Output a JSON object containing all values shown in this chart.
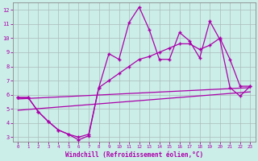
{
  "xlabel": "Windchill (Refroidissement éolien,°C)",
  "bg_color": "#cceee8",
  "line_color": "#aa00aa",
  "grid_color": "#aabbbb",
  "xlim": [
    -0.5,
    23.5
  ],
  "ylim": [
    2.7,
    12.5
  ],
  "xticks": [
    0,
    1,
    2,
    3,
    4,
    5,
    6,
    7,
    8,
    9,
    10,
    11,
    12,
    13,
    14,
    15,
    16,
    17,
    18,
    19,
    20,
    21,
    22,
    23
  ],
  "yticks": [
    3,
    4,
    5,
    6,
    7,
    8,
    9,
    10,
    11,
    12
  ],
  "line1_x": [
    0,
    1,
    2,
    3,
    4,
    5,
    6,
    7,
    8,
    9,
    10,
    11,
    12,
    13,
    14,
    15,
    16,
    17,
    18,
    19,
    20,
    21,
    22,
    23
  ],
  "line1_y": [
    5.8,
    5.8,
    4.8,
    4.1,
    3.5,
    3.2,
    2.8,
    3.1,
    6.5,
    8.9,
    8.5,
    11.1,
    12.2,
    10.6,
    8.5,
    8.5,
    10.4,
    9.8,
    8.6,
    11.2,
    9.9,
    6.5,
    5.9,
    6.6
  ],
  "line2_x": [
    0,
    1,
    2,
    3,
    4,
    5,
    6,
    7,
    8,
    9,
    10,
    11,
    12,
    13,
    14,
    15,
    16,
    17,
    18,
    19,
    20,
    21,
    22,
    23
  ],
  "line2_y": [
    5.8,
    5.8,
    4.8,
    4.1,
    3.5,
    3.2,
    3.0,
    3.2,
    6.5,
    7.0,
    7.5,
    8.0,
    8.5,
    8.7,
    9.0,
    9.3,
    9.6,
    9.6,
    9.2,
    9.5,
    10.0,
    8.5,
    6.6,
    6.6
  ],
  "line3_x": [
    0,
    23
  ],
  "line3_y": [
    5.7,
    6.5
  ],
  "line4_x": [
    0,
    23
  ],
  "line4_y": [
    4.9,
    6.2
  ]
}
